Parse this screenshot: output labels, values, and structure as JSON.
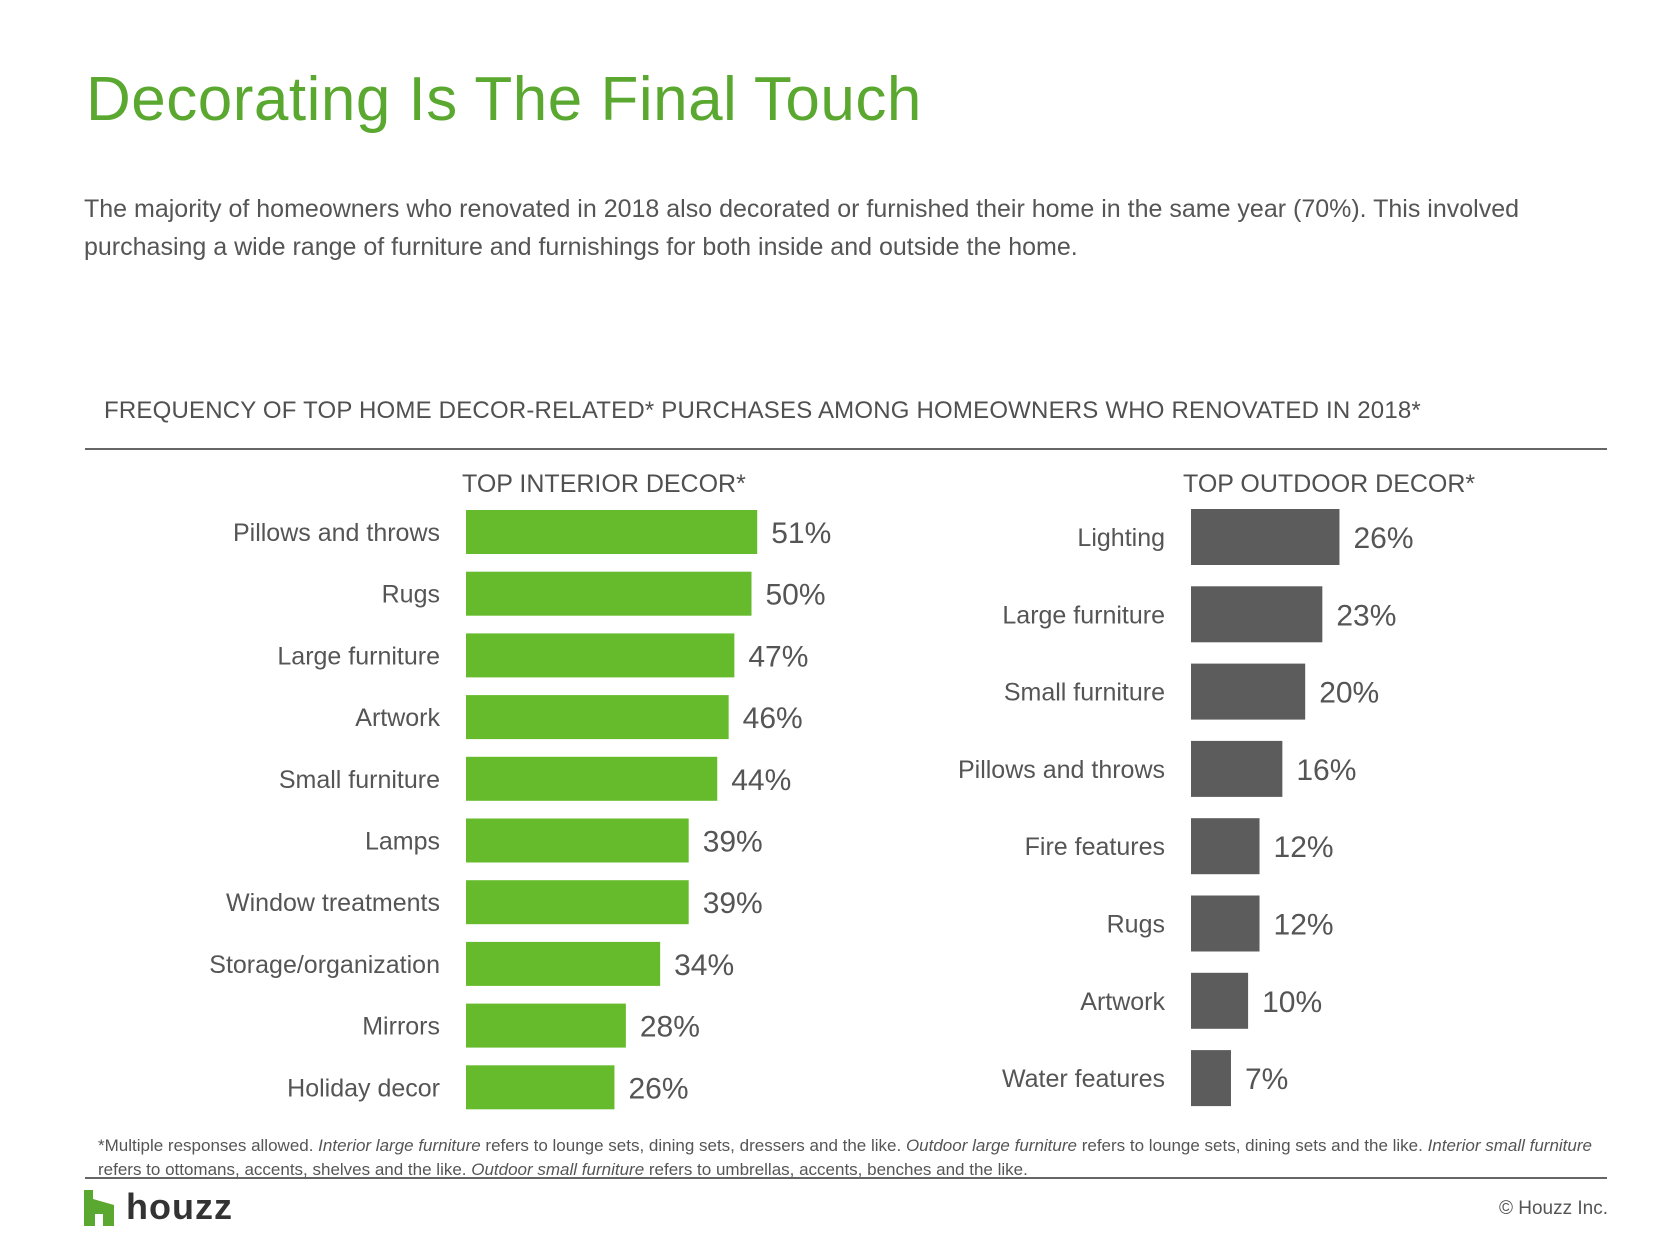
{
  "title": "Decorating Is The Final Touch",
  "subtitle": "The majority of homeowners who renovated in 2018 also decorated or furnished their home in the same year (70%). This involved purchasing a wide range of furniture and furnishings for both inside and outside the home.",
  "chart_heading": "FREQUENCY OF TOP HOME DECOR-RELATED* PURCHASES AMONG HOMEOWNERS WHO RENOVATED IN 2018*",
  "chart_data": [
    {
      "type": "bar",
      "orientation": "horizontal",
      "title": "TOP INTERIOR DECOR*",
      "categories": [
        "Pillows and throws",
        "Rugs",
        "Large furniture",
        "Artwork",
        "Small furniture",
        "Lamps",
        "Window treatments",
        "Storage/organization",
        "Mirrors",
        "Holiday decor"
      ],
      "values": [
        51,
        50,
        47,
        46,
        44,
        39,
        39,
        34,
        28,
        26
      ],
      "value_labels": [
        "51%",
        "50%",
        "47%",
        "46%",
        "44%",
        "39%",
        "39%",
        "34%",
        "28%",
        "26%"
      ],
      "unit": "%",
      "color": "#66bb2c",
      "xlim": [
        0,
        100
      ],
      "grid": false,
      "legend": "none"
    },
    {
      "type": "bar",
      "orientation": "horizontal",
      "title": "TOP OUTDOOR DECOR*",
      "categories": [
        "Lighting",
        "Large furniture",
        "Small furniture",
        "Pillows and throws",
        "Fire features",
        "Rugs",
        "Artwork",
        "Water features"
      ],
      "values": [
        26,
        23,
        20,
        16,
        12,
        12,
        10,
        7
      ],
      "value_labels": [
        "26%",
        "23%",
        "20%",
        "16%",
        "12%",
        "12%",
        "10%",
        "7%"
      ],
      "unit": "%",
      "color": "#5c5c5c",
      "xlim": [
        0,
        100
      ],
      "grid": false,
      "legend": "none"
    }
  ],
  "footnote": {
    "p1": "*Multiple responses allowed. ",
    "i1": "Interior large furniture",
    "p2": " refers to lounge sets, dining sets, dressers and the like. ",
    "i2": "Outdoor large furniture",
    "p3": " refers to lounge sets, dining sets and the like. ",
    "i3": "Interior small furniture",
    "p4": " refers to ottomans, accents, shelves and the like. ",
    "i4": "Outdoor small furniture",
    "p5": " refers to umbrellas, accents, benches and the like."
  },
  "logo": {
    "text": "houzz",
    "icon": "houzz-logo-icon",
    "color": "#5aa830"
  },
  "copyright": "© Houzz Inc."
}
